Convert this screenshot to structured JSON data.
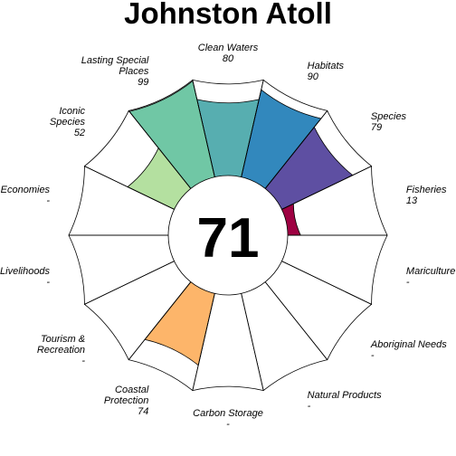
{
  "title": "Johnston Atoll",
  "chart_data": {
    "type": "flower",
    "title": "Johnston Atoll",
    "center_score": "71",
    "r_range": [
      0,
      100
    ],
    "petals": [
      {
        "name": [
          "Fisheries"
        ],
        "score": "13",
        "value": 13,
        "color": "#9E0142"
      },
      {
        "name": [
          "Species"
        ],
        "score": "79",
        "value": 79,
        "color": "#5E4FA2"
      },
      {
        "name": [
          "Habitats"
        ],
        "score": "90",
        "value": 90,
        "color": "#3288BD"
      },
      {
        "name": [
          "Clean Waters"
        ],
        "score": "80",
        "value": 80,
        "color": "#57AEB0"
      },
      {
        "name": [
          "Lasting Special",
          "Places"
        ],
        "score": "99",
        "value": 99,
        "color": "#70C7A5"
      },
      {
        "name": [
          "Iconic",
          "Species"
        ],
        "score": "52",
        "value": 52,
        "color": "#B4E0A0"
      },
      {
        "name": [
          "Economies"
        ],
        "score": "-",
        "value": null,
        "color": "#F4EC94"
      },
      {
        "name": [
          "Livelihoods"
        ],
        "score": "-",
        "value": null,
        "color": "#FCE48C"
      },
      {
        "name": [
          "Tourism &",
          "Recreation"
        ],
        "score": "-",
        "value": null,
        "color": "#FDCB7A"
      },
      {
        "name": [
          "Coastal",
          "Protection"
        ],
        "score": "74",
        "value": 74,
        "color": "#FDB56A"
      },
      {
        "name": [
          "Carbon Storage"
        ],
        "score": "-",
        "value": null,
        "color": "#F98E52"
      },
      {
        "name": [
          "Natural Products"
        ],
        "score": "-",
        "value": null,
        "color": "#E9603F"
      },
      {
        "name": [
          "Aboriginal Needs"
        ],
        "score": "-",
        "value": null,
        "color": "#D8473D"
      },
      {
        "name": [
          "Mariculture"
        ],
        "score": "-",
        "value": null,
        "color": "#C1273F"
      }
    ]
  }
}
